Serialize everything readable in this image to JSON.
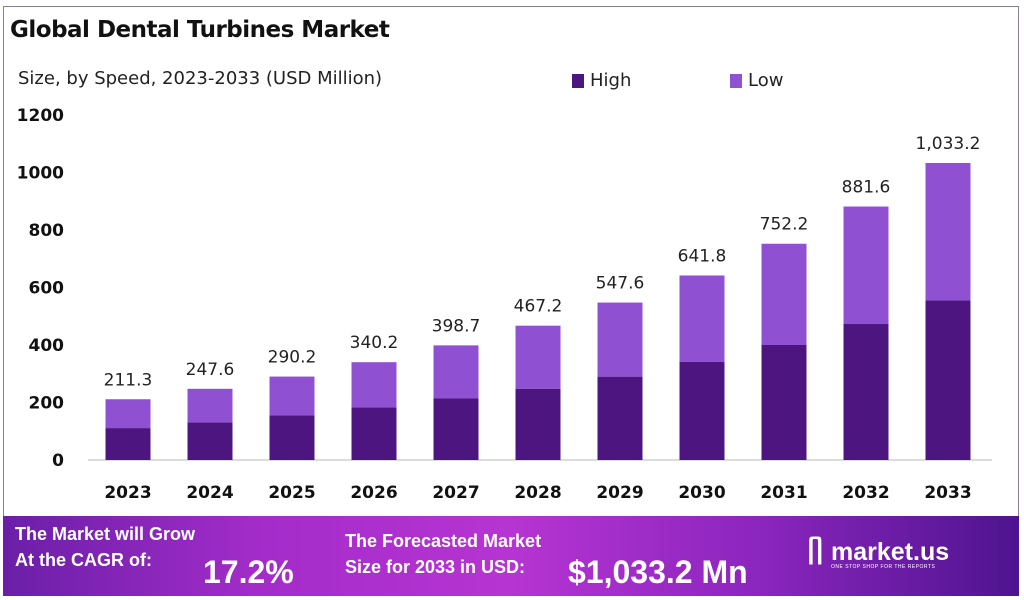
{
  "chart_data": {
    "type": "bar",
    "stacked": true,
    "title": "Global Dental Turbines Market",
    "subtitle": "Size, by Speed, 2023-2033 (USD Million)",
    "xlabel": "",
    "ylabel": "",
    "ylim": [
      0,
      1200
    ],
    "yticks": [
      0,
      200,
      400,
      600,
      800,
      1000,
      1200
    ],
    "legend_position": "top-right",
    "categories": [
      "2023",
      "2024",
      "2025",
      "2026",
      "2027",
      "2028",
      "2029",
      "2030",
      "2031",
      "2032",
      "2033"
    ],
    "series": [
      {
        "name": "High",
        "color": "#4d1580",
        "values": [
          111,
          131,
          155,
          183,
          214,
          248,
          290,
          341,
          400,
          473,
          555
        ]
      },
      {
        "name": "Low",
        "color": "#8f51d1",
        "values": [
          100.3,
          116.6,
          135.2,
          157.2,
          184.7,
          219.2,
          257.6,
          300.8,
          352.2,
          408.6,
          478.2
        ]
      }
    ],
    "totals": [
      211.3,
      247.6,
      290.2,
      340.2,
      398.7,
      467.2,
      547.6,
      641.8,
      752.2,
      881.6,
      1033.2
    ],
    "total_labels": [
      "211.3",
      "247.6",
      "290.2",
      "340.2",
      "398.7",
      "467.2",
      "547.6",
      "641.8",
      "752.2",
      "881.6",
      "1,033.2"
    ]
  },
  "banner": {
    "cagr_text_line1": "The Market will Grow",
    "cagr_text_line2": "At the CAGR of:",
    "cagr_value": "17.2%",
    "forecast_line1": "The Forecasted Market",
    "forecast_line2": "Size for 2033 in USD:",
    "forecast_value": "$1,033.2 Mn",
    "logo_name": "market.us",
    "logo_tagline": "ONE STOP SHOP FOR THE REPORTS"
  }
}
